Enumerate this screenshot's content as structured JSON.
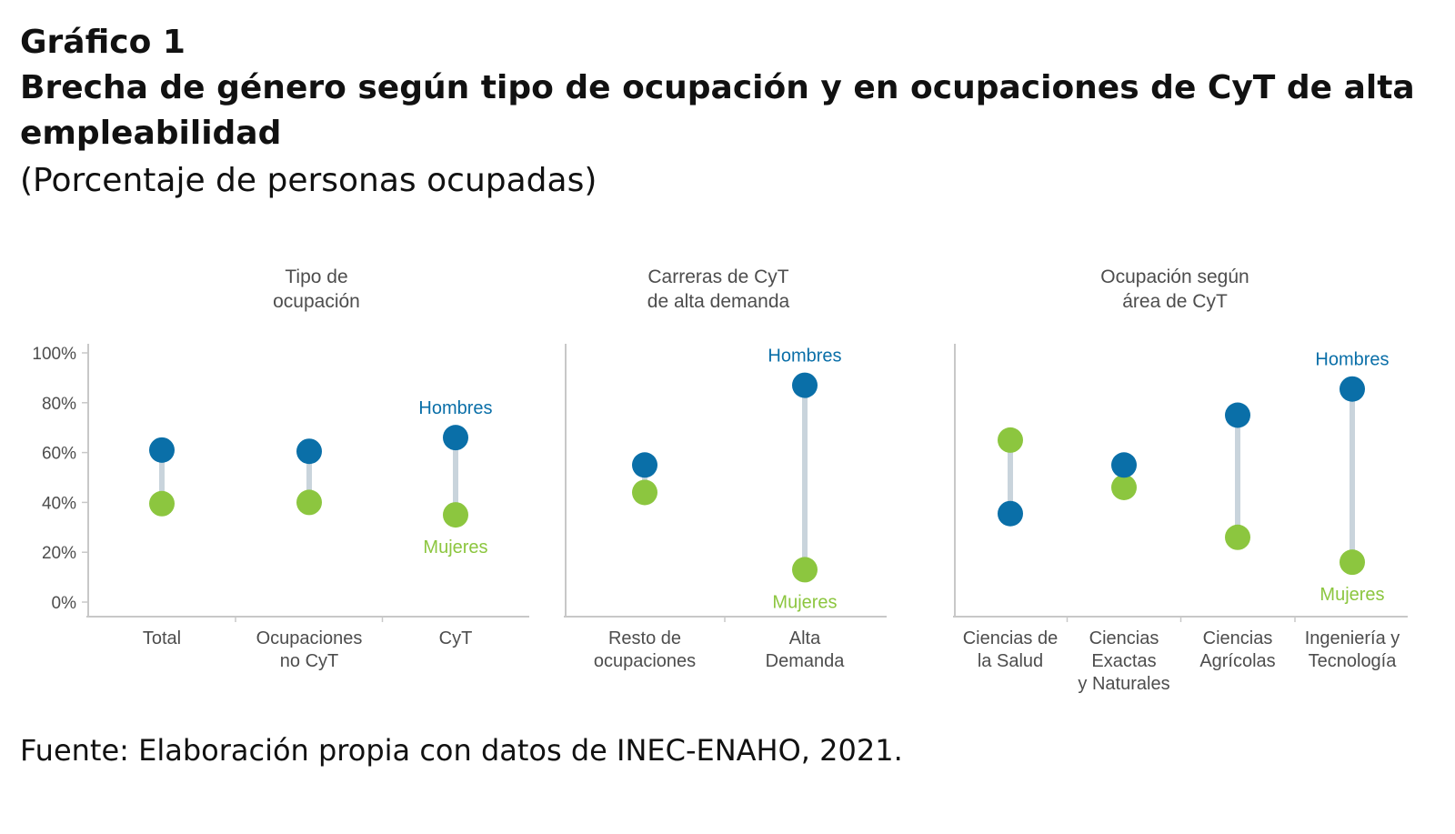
{
  "header": {
    "label": "Gráfico 1",
    "title": "Brecha de género según tipo de ocupación y en ocupaciones de CyT de alta empleabilidad",
    "subtitle": "(Porcentaje de personas ocupadas)"
  },
  "source": "Fuente: Elaboración propia con datos de INEC-ENAHO, 2021.",
  "chart_data": {
    "type": "scatter",
    "subtype": "dumbbell",
    "ylim": [
      0,
      100
    ],
    "yticks": [
      "100%",
      "80%",
      "60%",
      "40%",
      "20%",
      "0%"
    ],
    "grid": false,
    "series_meta": [
      {
        "name": "Hombres",
        "color": "#0a6fa8"
      },
      {
        "name": "Mujeres",
        "color": "#8cc63f"
      }
    ],
    "connector_color": "#c9d4dc",
    "axis_color": "#c8c8c8",
    "tick_label_color": "#4d4d4d",
    "panels": [
      {
        "title": [
          "Tipo de",
          "ocupación"
        ],
        "categories": [
          {
            "label": [
              "Total"
            ],
            "hombres": 61,
            "mujeres": 39.5
          },
          {
            "label": [
              "Ocupaciones",
              "no CyT"
            ],
            "hombres": 60.5,
            "mujeres": 40
          },
          {
            "label": [
              "CyT"
            ],
            "hombres": 66,
            "mujeres": 35,
            "annotate": true
          }
        ]
      },
      {
        "title": [
          "Carreras de CyT",
          "de alta demanda"
        ],
        "categories": [
          {
            "label": [
              "Resto de",
              "ocupaciones"
            ],
            "hombres": 55,
            "mujeres": 44
          },
          {
            "label": [
              "Alta",
              "Demanda"
            ],
            "hombres": 87,
            "mujeres": 13,
            "annotate": true
          }
        ]
      },
      {
        "title": [
          "Ocupación según",
          "área de CyT"
        ],
        "categories": [
          {
            "label": [
              "Ciencias de",
              "la Salud"
            ],
            "hombres": 35.5,
            "mujeres": 65
          },
          {
            "label": [
              "Ciencias",
              "Exactas",
              "y Naturales"
            ],
            "hombres": 55,
            "mujeres": 46
          },
          {
            "label": [
              "Ciencias",
              "Agrícolas"
            ],
            "hombres": 75,
            "mujeres": 26
          },
          {
            "label": [
              "Ingeniería y",
              "Tecnología"
            ],
            "hombres": 85.5,
            "mujeres": 16,
            "annotate": true
          }
        ]
      }
    ]
  }
}
